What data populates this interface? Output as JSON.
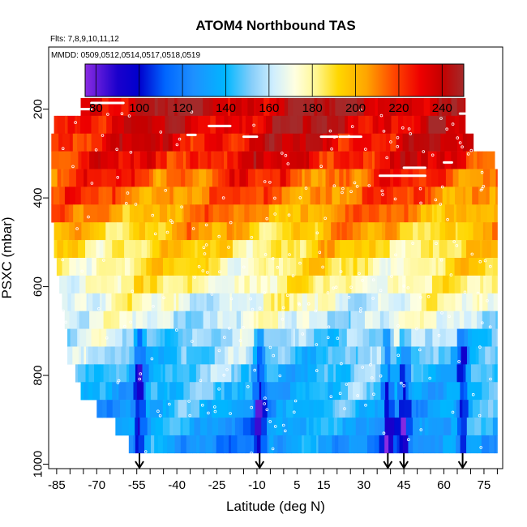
{
  "chart_data": {
    "type": "heatmap",
    "title": "ATOM4 Northbound TAS",
    "subtitle_flights": "Flts: 7,8,9,10,11,12",
    "subtitle_dates": "MMDD: 0509,0512,0514,0517,0518,0519",
    "xlabel": "Latitude (deg N)",
    "ylabel": "PSXC (mbar)",
    "xlim": [
      -88,
      82
    ],
    "ylim": [
      1010,
      60
    ],
    "x_ticks": [
      -85,
      -70,
      -55,
      -40,
      -25,
      -10,
      5,
      15,
      30,
      45,
      60,
      75
    ],
    "x_tick_labels": [
      "-85",
      "-70",
      "-55",
      "-40",
      "-25",
      "-10",
      "5",
      "15",
      "30",
      "45",
      "60",
      "75"
    ],
    "x_minor_ticks": [
      -80,
      -75,
      -65,
      -60,
      -50,
      -45,
      -35,
      -30,
      -20,
      -15,
      -5,
      0,
      10,
      20,
      25,
      35,
      40,
      50,
      55,
      65,
      70,
      80
    ],
    "y_ticks": [
      200,
      400,
      600,
      800,
      1000
    ],
    "y_tick_labels": [
      "200",
      "400",
      "600",
      "800",
      "1000"
    ],
    "colorbar": {
      "min": 75,
      "max": 250,
      "tick_values": [
        80,
        100,
        120,
        140,
        160,
        180,
        200,
        220,
        240
      ],
      "tick_labels": [
        "80",
        "100",
        "120",
        "140",
        "160",
        "180",
        "200",
        "220",
        "240"
      ],
      "stops": [
        {
          "v": 75,
          "c": "#8b2be2"
        },
        {
          "v": 90,
          "c": "#1a00cc"
        },
        {
          "v": 100,
          "c": "#0000cd"
        },
        {
          "v": 112,
          "c": "#0066ff"
        },
        {
          "v": 125,
          "c": "#1e90ff"
        },
        {
          "v": 140,
          "c": "#00b7ff"
        },
        {
          "v": 152,
          "c": "#87cefa"
        },
        {
          "v": 162,
          "c": "#cfeefe"
        },
        {
          "v": 172,
          "c": "#ffffe0"
        },
        {
          "v": 182,
          "c": "#fff68f"
        },
        {
          "v": 192,
          "c": "#ffd700"
        },
        {
          "v": 205,
          "c": "#ffa500"
        },
        {
          "v": 218,
          "c": "#ff4500"
        },
        {
          "v": 230,
          "c": "#ee0000"
        },
        {
          "v": 240,
          "c": "#c40000"
        },
        {
          "v": 250,
          "c": "#a52a2a"
        }
      ]
    },
    "band_pressure_top": 175,
    "band_pressure_bottom": 975,
    "band_count": 20,
    "lat_start_by_band": [
      -76,
      -86,
      -87,
      -87,
      -87,
      -87,
      -87,
      -86,
      -86,
      -85,
      -84,
      -83,
      -82,
      -81,
      -81,
      -78,
      -76,
      -70,
      -63,
      -58
    ],
    "lat_end_by_band": [
      68,
      68,
      71,
      79,
      80,
      80,
      80,
      80,
      80,
      80,
      80,
      80,
      80,
      80,
      80,
      80,
      80,
      80,
      80,
      80
    ],
    "tas_profile_by_band": [
      236,
      232,
      228,
      224,
      218,
      212,
      206,
      198,
      190,
      184,
      178,
      170,
      164,
      156,
      150,
      145,
      140,
      136,
      132,
      128
    ],
    "flight_level_segments": [
      {
        "lat0": -72,
        "lat1": -60,
        "p": 186
      },
      {
        "lat0": -82,
        "lat1": -72,
        "p": 200
      },
      {
        "lat0": -36,
        "lat1": -33,
        "p": 258
      },
      {
        "lat0": -28,
        "lat1": -20,
        "p": 238
      },
      {
        "lat0": -15,
        "lat1": -10,
        "p": 262
      },
      {
        "lat0": 14,
        "lat1": 20,
        "p": 262
      },
      {
        "lat0": 21,
        "lat1": 29,
        "p": 262
      },
      {
        "lat0": 36,
        "lat1": 53,
        "p": 350
      },
      {
        "lat0": 45,
        "lat1": 53,
        "p": 332
      },
      {
        "lat0": 60,
        "lat1": 63,
        "p": 320
      },
      {
        "lat0": 66,
        "lat1": 72,
        "p": 210
      }
    ],
    "profile_arrow_latitudes": [
      -54,
      -9,
      39,
      45,
      67
    ]
  }
}
